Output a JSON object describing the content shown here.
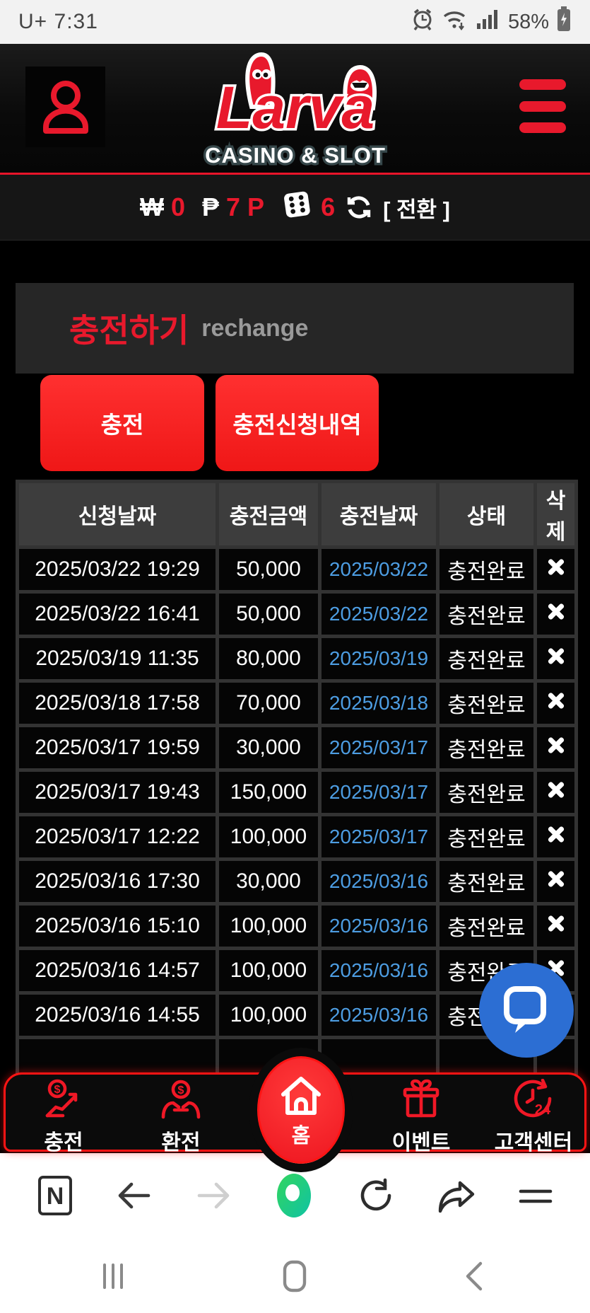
{
  "status_bar": {
    "carrier": "U+",
    "time": "7:31",
    "battery_percent": "58%",
    "icons": [
      "alarm-icon",
      "wifi-icon",
      "signal-icon",
      "battery-charging-icon"
    ]
  },
  "header": {
    "logo_title": "Larva",
    "logo_subtitle": "CASINO & SLOT",
    "profile_icon": "person-icon",
    "menu_icon": "hamburger-icon"
  },
  "balance_bar": {
    "krw_symbol": "₩",
    "krw_value": "0",
    "php_symbol": "₱",
    "php_value": "7 P",
    "dice_icon": "dice-six-icon",
    "dice_value": "6",
    "refresh_icon": "refresh-icon",
    "convert_label": "[ 전환 ]"
  },
  "page": {
    "title_ko": "충전하기",
    "title_en": "rechange"
  },
  "actions": {
    "charge_label": "충전",
    "history_label": "충전신청내역"
  },
  "table": {
    "headers": [
      "신청날짜",
      "충전금액",
      "충전날짜",
      "상태",
      "삭제"
    ],
    "delete_icon": "x-icon",
    "rows": [
      {
        "applied": "2025/03/22 19:29",
        "amount": "50,000",
        "date": "2025/03/22",
        "status": "충전완료"
      },
      {
        "applied": "2025/03/22 16:41",
        "amount": "50,000",
        "date": "2025/03/22",
        "status": "충전완료"
      },
      {
        "applied": "2025/03/19 11:35",
        "amount": "80,000",
        "date": "2025/03/19",
        "status": "충전완료"
      },
      {
        "applied": "2025/03/18 17:58",
        "amount": "70,000",
        "date": "2025/03/18",
        "status": "충전완료"
      },
      {
        "applied": "2025/03/17 19:59",
        "amount": "30,000",
        "date": "2025/03/17",
        "status": "충전완료"
      },
      {
        "applied": "2025/03/17 19:43",
        "amount": "150,000",
        "date": "2025/03/17",
        "status": "충전완료"
      },
      {
        "applied": "2025/03/17 12:22",
        "amount": "100,000",
        "date": "2025/03/17",
        "status": "충전완료"
      },
      {
        "applied": "2025/03/16 17:30",
        "amount": "30,000",
        "date": "2025/03/16",
        "status": "충전완료"
      },
      {
        "applied": "2025/03/16 15:10",
        "amount": "100,000",
        "date": "2025/03/16",
        "status": "충전완료"
      },
      {
        "applied": "2025/03/16 14:57",
        "amount": "100,000",
        "date": "2025/03/16",
        "status": "충전완료"
      },
      {
        "applied": "2025/03/16 14:55",
        "amount": "100,000",
        "date": "2025/03/16",
        "status": "충전완료"
      },
      {
        "applied": "",
        "amount": "",
        "date": "",
        "status": ""
      }
    ]
  },
  "chat": {
    "icon": "chat-bubble-icon"
  },
  "bottom_nav": {
    "items": [
      {
        "label": "충전",
        "icon": "hand-coin-icon"
      },
      {
        "label": "환전",
        "icon": "hands-dollar-icon"
      },
      {
        "label": "홈",
        "icon": "home-icon"
      },
      {
        "label": "이벤트",
        "icon": "gift-icon"
      },
      {
        "label": "고객센터",
        "icon": "support-24-icon"
      }
    ],
    "support_badge": "24"
  },
  "browser_bar": {
    "naver_letter": "N",
    "icons": [
      "naver-app-icon",
      "back-icon",
      "forward-icon",
      "green-dot-icon",
      "reload-icon",
      "share-icon",
      "tabs-menu-icon"
    ]
  },
  "android_nav": {
    "icons": [
      "recents-icon",
      "home-pill-icon",
      "back-chevron-icon"
    ]
  },
  "colors": {
    "accent_red": "#e8192c",
    "button_red": "#ef1717",
    "link_blue": "#4d9de2",
    "chat_blue": "#2c6ed3",
    "naver_green": "#27ce62",
    "table_header_bg": "#3d3d3d",
    "cell_border": "#333333"
  }
}
